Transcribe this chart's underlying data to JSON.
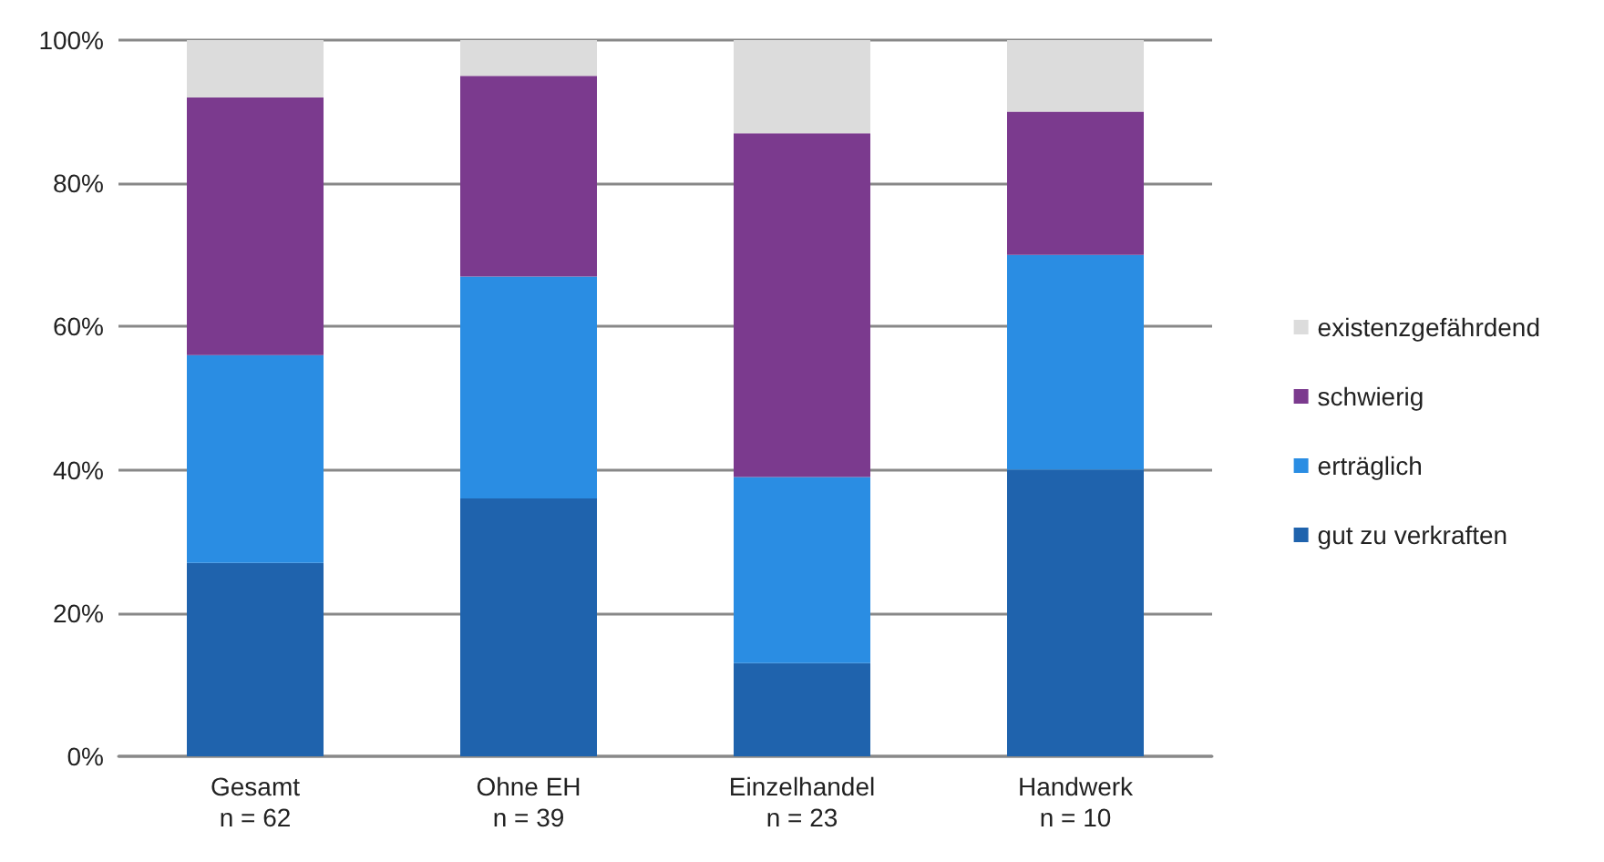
{
  "chart_data": {
    "type": "bar",
    "stacked": true,
    "categories": [
      "Gesamt\nn = 62",
      "Ohne EH\nn = 39",
      "Einzelhandel\nn = 23",
      "Handwerk\nn = 10"
    ],
    "series": [
      {
        "name": "gut zu verkraften",
        "color": "#1f63ad",
        "values": [
          27,
          36,
          13,
          40
        ]
      },
      {
        "name": "erträglich",
        "color": "#2a8de3",
        "values": [
          29,
          31,
          26,
          30
        ]
      },
      {
        "name": "schwierig",
        "color": "#7b3a8e",
        "values": [
          36,
          28,
          48,
          20
        ]
      },
      {
        "name": "existenzgefährdend",
        "color": "#dcdcdc",
        "values": [
          8,
          5,
          13,
          10
        ]
      }
    ],
    "ylim": [
      0,
      100
    ],
    "yticks": [
      {
        "value": 0,
        "label": "0%"
      },
      {
        "value": 20,
        "label": "20%"
      },
      {
        "value": 40,
        "label": "40%"
      },
      {
        "value": 60,
        "label": "60%"
      },
      {
        "value": 80,
        "label": "80%"
      },
      {
        "value": 100,
        "label": "100%"
      }
    ],
    "grid": "y",
    "legend": "right"
  }
}
